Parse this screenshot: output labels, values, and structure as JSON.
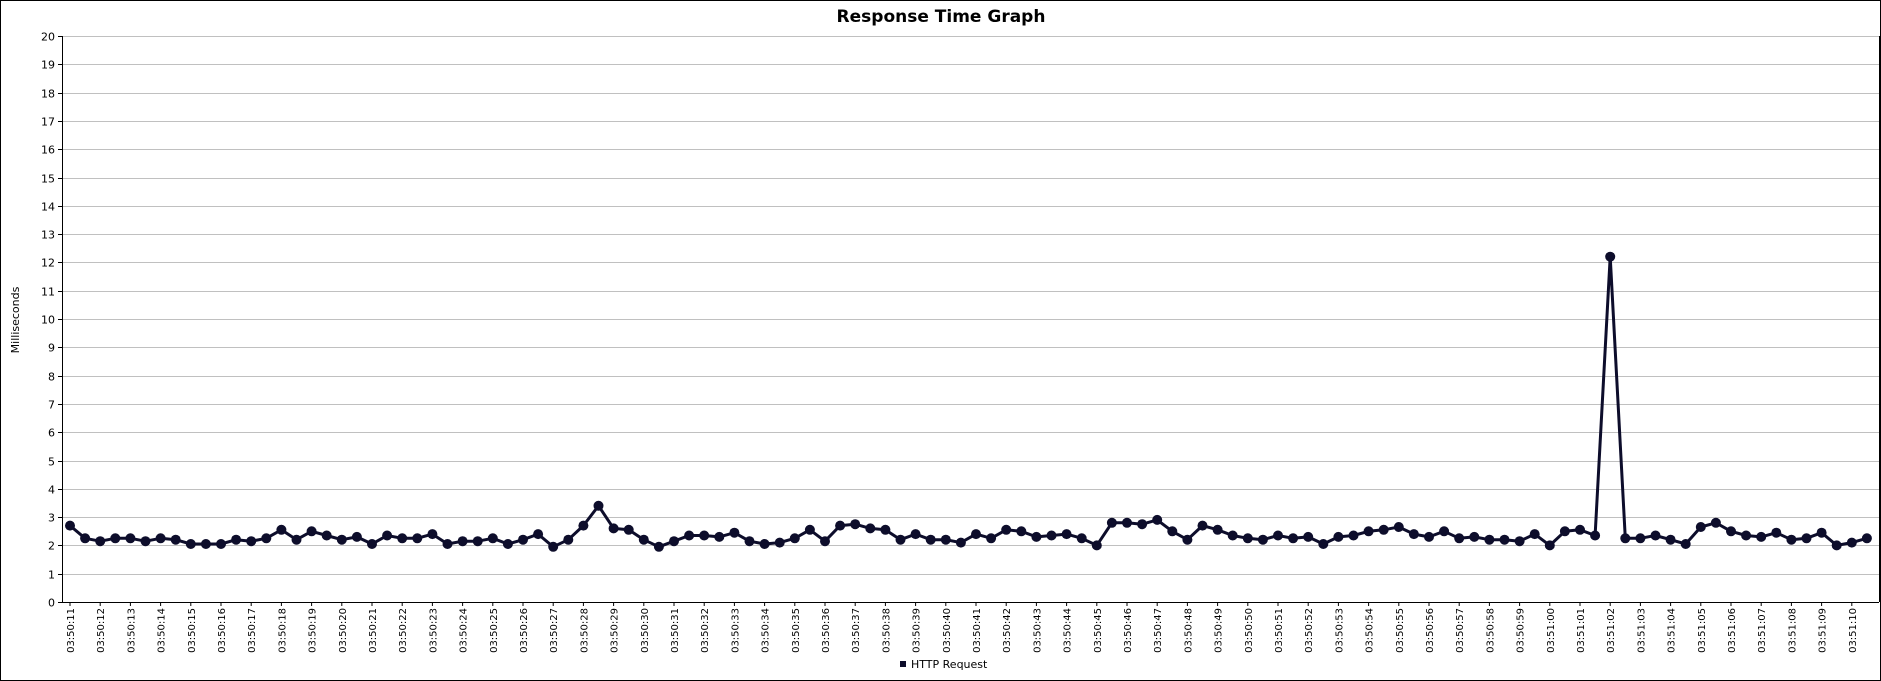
{
  "colors": {
    "series": "#0d0d2b",
    "grid": "#c0c0c0",
    "axis": "#000000"
  },
  "chart_data": {
    "type": "line",
    "title": "Response Time Graph",
    "ylabel": "Milliseconds",
    "xlabel": "",
    "ylim": [
      0,
      20
    ],
    "yticks": [
      0,
      1,
      2,
      3,
      4,
      5,
      6,
      7,
      8,
      9,
      10,
      11,
      12,
      13,
      14,
      15,
      16,
      17,
      18,
      19,
      20
    ],
    "grid": true,
    "legend_position": "bottom-center",
    "x_tick_labels": [
      "03:50:11",
      "03:50:12",
      "03:50:13",
      "03:50:14",
      "03:50:15",
      "03:50:16",
      "03:50:17",
      "03:50:18",
      "03:50:19",
      "03:50:20",
      "03:50:21",
      "03:50:22",
      "03:50:23",
      "03:50:24",
      "03:50:25",
      "03:50:26",
      "03:50:27",
      "03:50:28",
      "03:50:29",
      "03:50:30",
      "03:50:31",
      "03:50:32",
      "03:50:33",
      "03:50:34",
      "03:50:35",
      "03:50:36",
      "03:50:37",
      "03:50:38",
      "03:50:39",
      "03:50:40",
      "03:50:41",
      "03:50:42",
      "03:50:43",
      "03:50:44",
      "03:50:45",
      "03:50:46",
      "03:50:47",
      "03:50:48",
      "03:50:49",
      "03:50:50",
      "03:50:51",
      "03:50:52",
      "03:50:53",
      "03:50:54",
      "03:50:55",
      "03:50:56",
      "03:50:57",
      "03:50:58",
      "03:50:59",
      "03:51:00",
      "03:51:01",
      "03:51:02",
      "03:51:03",
      "03:51:04",
      "03:51:05",
      "03:51:06",
      "03:51:07",
      "03:51:08",
      "03:51:09",
      "03:51:10"
    ],
    "series": [
      {
        "name": "HTTP Request",
        "values": [
          2.7,
          2.25,
          2.15,
          2.25,
          2.25,
          2.15,
          2.25,
          2.2,
          2.05,
          2.05,
          2.05,
          2.2,
          2.15,
          2.25,
          2.55,
          2.2,
          2.5,
          2.35,
          2.2,
          2.3,
          2.05,
          2.35,
          2.25,
          2.25,
          2.4,
          2.05,
          2.15,
          2.15,
          2.25,
          2.05,
          2.2,
          2.4,
          1.95,
          2.2,
          2.7,
          3.4,
          2.6,
          2.55,
          2.2,
          1.95,
          2.15,
          2.35,
          2.35,
          2.3,
          2.45,
          2.15,
          2.05,
          2.1,
          2.25,
          2.55,
          2.15,
          2.7,
          2.75,
          2.6,
          2.55,
          2.2,
          2.4,
          2.2,
          2.2,
          2.1,
          2.4,
          2.25,
          2.55,
          2.5,
          2.3,
          2.35,
          2.4,
          2.25,
          2.0,
          2.8,
          2.8,
          2.75,
          2.9,
          2.5,
          2.2,
          2.7,
          2.55,
          2.35,
          2.25,
          2.2,
          2.35,
          2.25,
          2.3,
          2.05,
          2.3,
          2.35,
          2.5,
          2.55,
          2.65,
          2.4,
          2.3,
          2.5,
          2.25,
          2.3,
          2.2,
          2.2,
          2.15,
          2.4,
          2.0,
          2.5,
          2.55,
          2.35,
          12.2,
          2.25,
          2.25,
          2.35,
          2.2,
          2.05,
          2.65,
          2.8,
          2.5,
          2.35,
          2.3,
          2.45,
          2.2,
          2.25,
          2.45,
          2.0,
          2.1,
          2.25
        ]
      }
    ]
  }
}
